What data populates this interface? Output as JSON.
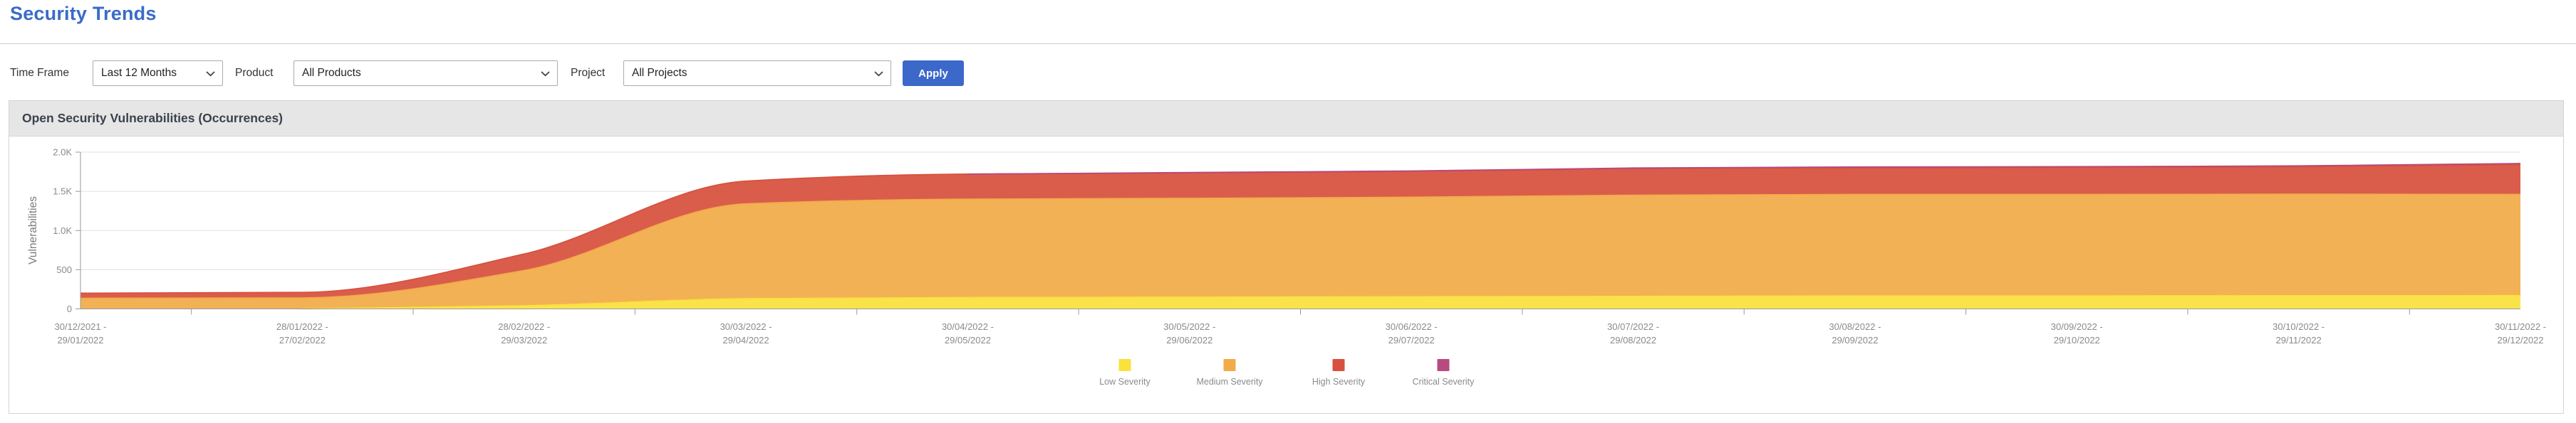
{
  "page": {
    "title": "Security Trends"
  },
  "filters": {
    "time_frame": {
      "label": "Time Frame",
      "value": "Last 12 Months"
    },
    "product": {
      "label": "Product",
      "value": "All Products"
    },
    "project": {
      "label": "Project",
      "value": "All Projects"
    },
    "apply_label": "Apply"
  },
  "panel": {
    "title": "Open Security Vulnerabilities (Occurrences)"
  },
  "colors": {
    "title_blue": "#3A6BC8",
    "apply_button_blue": "#3B68C9",
    "panel_header_bg": "#E6E6E6",
    "axis_gray": "#999999",
    "grid_gray": "#E0E0E0",
    "tick_text_gray": "#8A8A8A"
  },
  "chart_data": {
    "type": "area",
    "stacked": true,
    "title": "Open Security Vulnerabilities (Occurrences)",
    "xlabel": "",
    "ylabel": "Vulnerabilities",
    "ylim": [
      0,
      2000
    ],
    "ytick_values": [
      0,
      500,
      1000,
      1500,
      2000
    ],
    "ytick_labels": [
      "0",
      "500",
      "1.0K",
      "1.5K",
      "2.0K"
    ],
    "grid": true,
    "legend_position": "bottom",
    "categories": [
      "30/12/2021 - 29/01/2022",
      "28/01/2022 - 27/02/2022",
      "28/02/2022 - 29/03/2022",
      "30/03/2022 - 29/04/2022",
      "30/04/2022 - 29/05/2022",
      "30/05/2022 - 29/06/2022",
      "30/06/2022 - 29/07/2022",
      "30/07/2022 - 29/08/2022",
      "30/08/2022 - 29/09/2022",
      "30/09/2022 - 29/10/2022",
      "30/10/2022 - 29/11/2022",
      "30/11/2022 - 29/12/2022"
    ],
    "series": [
      {
        "name": "Low Severity",
        "color": "#FAE13C",
        "values": [
          0,
          0,
          40,
          130,
          145,
          150,
          155,
          160,
          165,
          165,
          168,
          170
        ]
      },
      {
        "name": "Medium Severity",
        "color": "#F2AB49",
        "values": [
          135,
          140,
          450,
          1210,
          1255,
          1260,
          1270,
          1290,
          1295,
          1295,
          1295,
          1290
        ]
      },
      {
        "name": "High Severity",
        "color": "#D7513E",
        "values": [
          65,
          70,
          210,
          290,
          320,
          325,
          330,
          340,
          340,
          345,
          350,
          380
        ]
      },
      {
        "name": "Critical Severity",
        "color": "#B74A7F",
        "values": [
          0,
          0,
          0,
          0,
          0,
          5,
          5,
          8,
          10,
          10,
          12,
          15
        ]
      }
    ]
  }
}
